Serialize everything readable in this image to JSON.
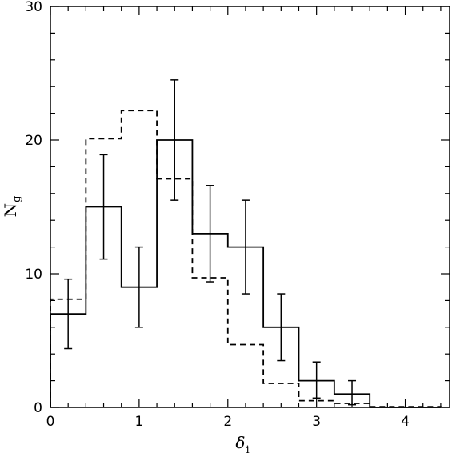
{
  "chart_data": {
    "type": "histogram",
    "xlabel": "δ",
    "xlabel_sub": "i",
    "ylabel": "N",
    "ylabel_sub": "g",
    "xlim": [
      0,
      4.5
    ],
    "ylim": [
      0,
      30
    ],
    "x_ticks": [
      0,
      1,
      2,
      3,
      4
    ],
    "y_ticks": [
      0,
      10,
      20,
      30
    ],
    "bin_edges": [
      0,
      0.4,
      0.8,
      1.2,
      1.6,
      2.0,
      2.4,
      2.8,
      3.2,
      3.6,
      4.0,
      4.4
    ],
    "series": [
      {
        "style": "solid",
        "values": [
          7,
          15,
          9,
          20,
          13,
          12,
          6,
          2,
          1,
          0,
          0
        ],
        "error_x": [
          0.2,
          0.6,
          1.0,
          1.4,
          1.8,
          2.2,
          2.6,
          3.0,
          3.4
        ],
        "error_low": [
          4.4,
          11.1,
          6.0,
          15.5,
          9.4,
          8.5,
          3.5,
          0.7,
          0.2
        ],
        "error_high": [
          9.6,
          18.9,
          12.0,
          24.5,
          16.6,
          15.5,
          8.5,
          3.4,
          2.0
        ]
      },
      {
        "style": "dashed",
        "values": [
          8.1,
          20.1,
          22.2,
          17.1,
          9.7,
          4.7,
          1.8,
          0.5,
          0.3,
          0.05,
          0.05
        ]
      }
    ]
  }
}
